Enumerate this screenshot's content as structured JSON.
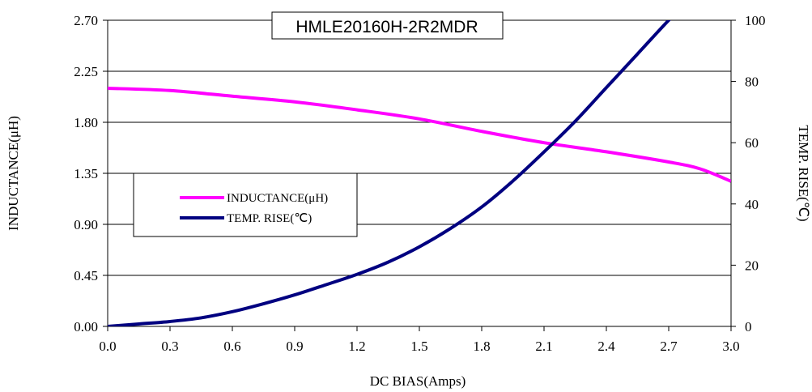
{
  "chart_data": {
    "type": "line",
    "title": "HMLE20160H-2R2MDR",
    "xlabel": "DC BIAS(Amps)",
    "ylabel_left": "INDUCTANCE(μH)",
    "ylabel_right": "TEMP. RISE(℃)",
    "xlim": [
      0,
      3.0
    ],
    "ylim_left": [
      0,
      2.7
    ],
    "ylim_right": [
      0,
      100
    ],
    "x_ticks": [
      "0.0",
      "0.3",
      "0.6",
      "0.9",
      "1.2",
      "1.5",
      "1.8",
      "2.1",
      "2.4",
      "2.7",
      "3.0"
    ],
    "y_left_ticks": [
      "0.00",
      "0.45",
      "0.90",
      "1.35",
      "1.80",
      "2.25",
      "2.70"
    ],
    "y_right_ticks": [
      "0",
      "20",
      "40",
      "60",
      "80",
      "100"
    ],
    "grid": "horizontal",
    "legend_position": "left-middle",
    "series": [
      {
        "name": "INDUCTANCE(μH)",
        "axis": "left",
        "color": "#ff00ff",
        "x": [
          0.0,
          0.3,
          0.6,
          0.9,
          1.2,
          1.5,
          1.8,
          2.1,
          2.4,
          2.7,
          2.85,
          3.0
        ],
        "y": [
          2.1,
          2.08,
          2.03,
          1.98,
          1.91,
          1.83,
          1.72,
          1.62,
          1.54,
          1.45,
          1.39,
          1.28
        ]
      },
      {
        "name": "TEMP. RISE(℃)",
        "axis": "right",
        "color": "#000080",
        "x": [
          0.0,
          0.15,
          0.3,
          0.45,
          0.6,
          0.75,
          0.9,
          1.05,
          1.2,
          1.35,
          1.5,
          1.65,
          1.8,
          1.95,
          2.1,
          2.25,
          2.4,
          2.55,
          2.7,
          2.73
        ],
        "y": [
          0,
          0.8,
          1.6,
          2.8,
          4.8,
          7.4,
          10.3,
          13.6,
          17.0,
          21.0,
          26.0,
          32.0,
          39.0,
          47.5,
          57.0,
          67.0,
          78.0,
          89.0,
          100.0,
          101.5
        ]
      }
    ]
  }
}
